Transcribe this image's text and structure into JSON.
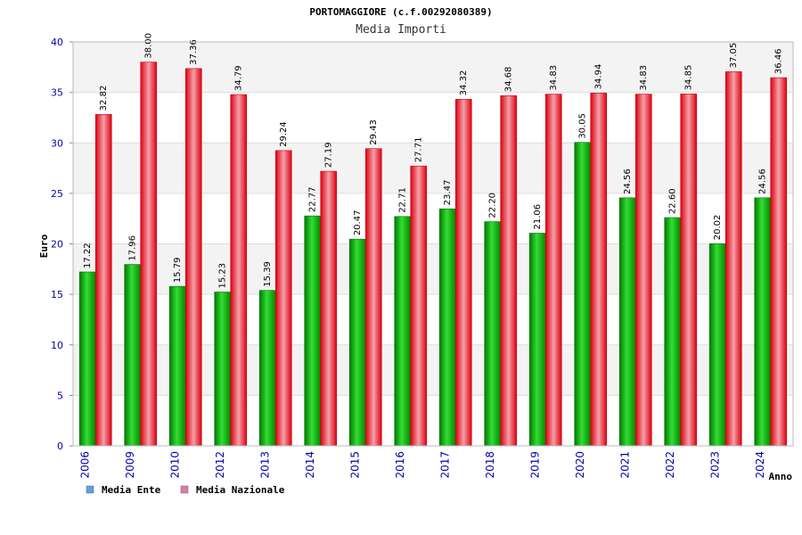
{
  "chart_data": {
    "type": "bar",
    "title": "PORTOMAGGIORE (c.f.00292080389)",
    "subtitle": "Media Importi",
    "xlabel": "Anno",
    "ylabel": "Euro",
    "ylim": [
      0,
      40
    ],
    "yticks": [
      "0",
      "5",
      "10",
      "15",
      "20",
      "25",
      "30",
      "35",
      "40"
    ],
    "grid": true,
    "legend_position": "bottom-left",
    "categories": [
      "2006",
      "2009",
      "2010",
      "2012",
      "2013",
      "2014",
      "2015",
      "2016",
      "2017",
      "2018",
      "2019",
      "2020",
      "2021",
      "2022",
      "2023",
      "2024"
    ],
    "series": [
      {
        "name": "Media Ente",
        "color": "#00aa00",
        "legend_color": "#5fa0e6",
        "values": [
          17.22,
          17.96,
          15.79,
          15.23,
          15.39,
          22.77,
          20.47,
          22.71,
          23.47,
          22.2,
          21.06,
          30.05,
          24.56,
          22.6,
          20.02,
          24.56
        ],
        "labels": [
          "17.22",
          "17.96",
          "15.79",
          "15.23",
          "15.39",
          "22.77",
          "20.47",
          "22.71",
          "23.47",
          "22.20",
          "21.06",
          "30.05",
          "24.56",
          "22.60",
          "20.02",
          "24.56"
        ]
      },
      {
        "name": "Media Nazionale",
        "color": "#ee1122",
        "legend_color": "#e07aa8",
        "values": [
          32.82,
          38.0,
          37.36,
          34.79,
          29.24,
          27.19,
          29.43,
          27.71,
          34.32,
          34.68,
          34.83,
          34.94,
          34.83,
          34.85,
          37.05,
          36.46
        ],
        "labels": [
          "32.82",
          "38.00",
          "37.36",
          "34.79",
          "29.24",
          "27.19",
          "29.43",
          "27.71",
          "34.32",
          "34.68",
          "34.83",
          "34.94",
          "34.83",
          "34.85",
          "37.05",
          "36.46"
        ]
      }
    ]
  }
}
